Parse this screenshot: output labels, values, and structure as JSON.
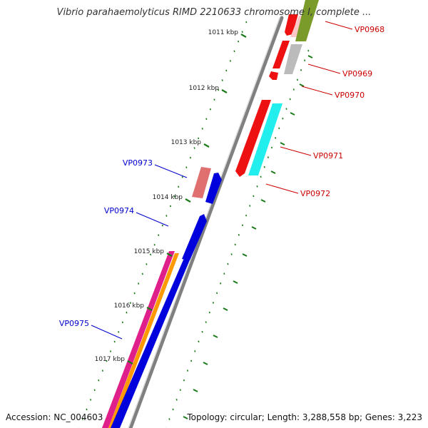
{
  "title": "Vibrio parahaemolyticus RIMD 2210633 chromosome I, complete ...",
  "footer": {
    "accession": "Accession: NC_004603",
    "summary": "Topology: circular; Length: 3,288,558 bp; Genes: 3,223"
  },
  "ticks": [
    "1011 kbp",
    "1012 kbp",
    "1013 kbp",
    "1014 kbp",
    "1015 kbp",
    "1016 kbp",
    "1017 kbp"
  ],
  "genes_right": [
    "VP0968",
    "VP0969",
    "VP0970",
    "VP0971",
    "VP0972"
  ],
  "genes_left": [
    "VP0973",
    "VP0974",
    "VP0975"
  ],
  "colors": {
    "right_label": "#cc0000",
    "left_label": "#0000cc",
    "backbone": "#808080",
    "tick_dash": "#1a7a1a",
    "red": "#ee1111",
    "olive": "#7a9a2a",
    "gray": "#bbbbbb",
    "pink": "#f0a0a8",
    "cyan": "#22eeee",
    "rose": "#e07070",
    "blue": "#0000dd",
    "magenta": "#e0208a",
    "orange": "#ff9900"
  }
}
